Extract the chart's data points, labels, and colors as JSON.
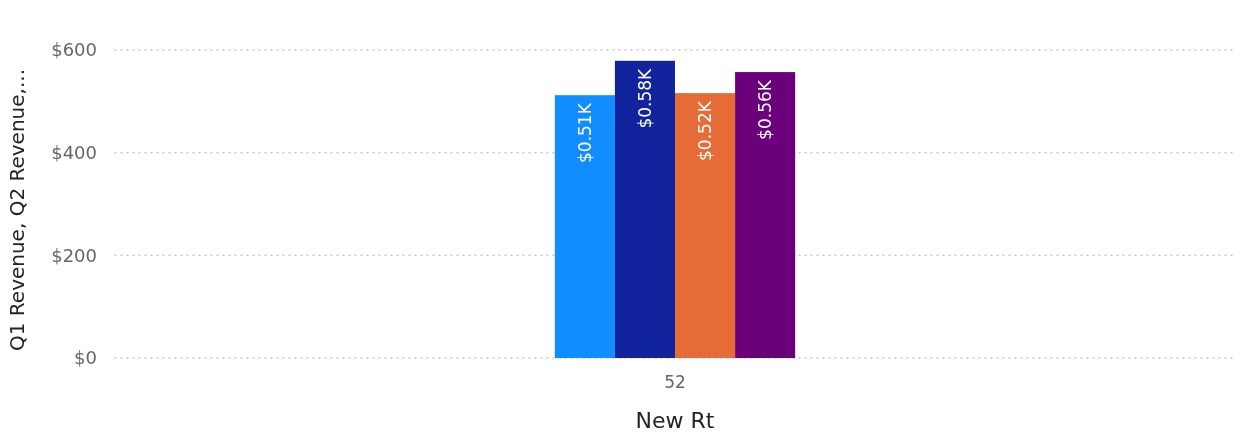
{
  "chart_data": {
    "type": "bar",
    "categories": [
      "52"
    ],
    "xlabel": "New Rt",
    "ylabel": "Q1 Revenue, Q2 Revenue,...",
    "series": [
      {
        "color": "#118dff",
        "values": [
          512
        ],
        "value_labels": [
          "$0.51K"
        ]
      },
      {
        "color": "#12239e",
        "values": [
          579
        ],
        "value_labels": [
          "$0.58K"
        ]
      },
      {
        "color": "#e66c37",
        "values": [
          516
        ],
        "value_labels": [
          "$0.52K"
        ]
      },
      {
        "color": "#6b007b",
        "values": [
          557
        ],
        "value_labels": [
          "$0.56K"
        ]
      }
    ],
    "ylim": [
      0,
      600
    ],
    "yticks": [
      {
        "value": 0,
        "label": "$0"
      },
      {
        "value": 200,
        "label": "$200"
      },
      {
        "value": 400,
        "label": "$400"
      },
      {
        "value": 600,
        "label": "$600"
      }
    ],
    "grid": "y"
  }
}
